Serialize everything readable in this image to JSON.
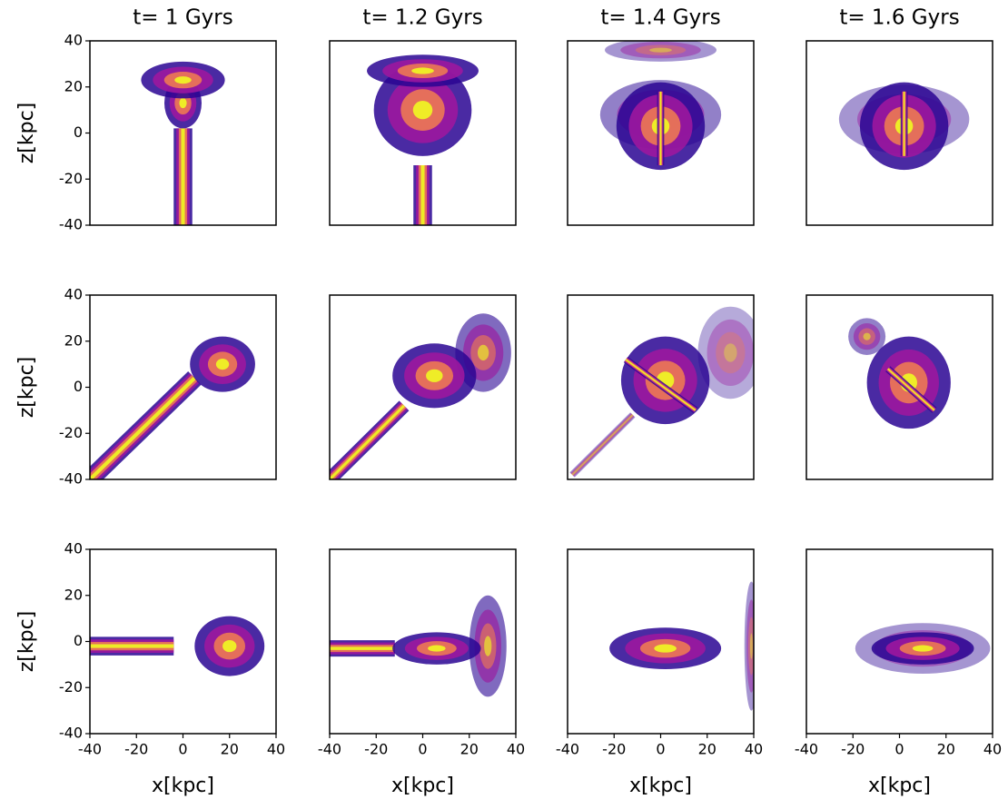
{
  "chart_data": {
    "type": "heatmap-grid",
    "titles": [
      "t= 1 Gyrs",
      "t= 1.2 Gyrs",
      "t= 1.4 Gyrs",
      "t= 1.6 Gyrs"
    ],
    "rows": 3,
    "xlabel": "x[kpc]",
    "ylabel": "z[kpc]",
    "xlim": [
      -40,
      40
    ],
    "ylim": [
      -40,
      40
    ],
    "xticks": [
      -40,
      -20,
      0,
      20,
      40
    ],
    "yticks": [
      -40,
      -20,
      0,
      20,
      40
    ],
    "colormap": [
      "#2a0593",
      "#9c179e",
      "#ed7953",
      "#f0f921"
    ]
  }
}
